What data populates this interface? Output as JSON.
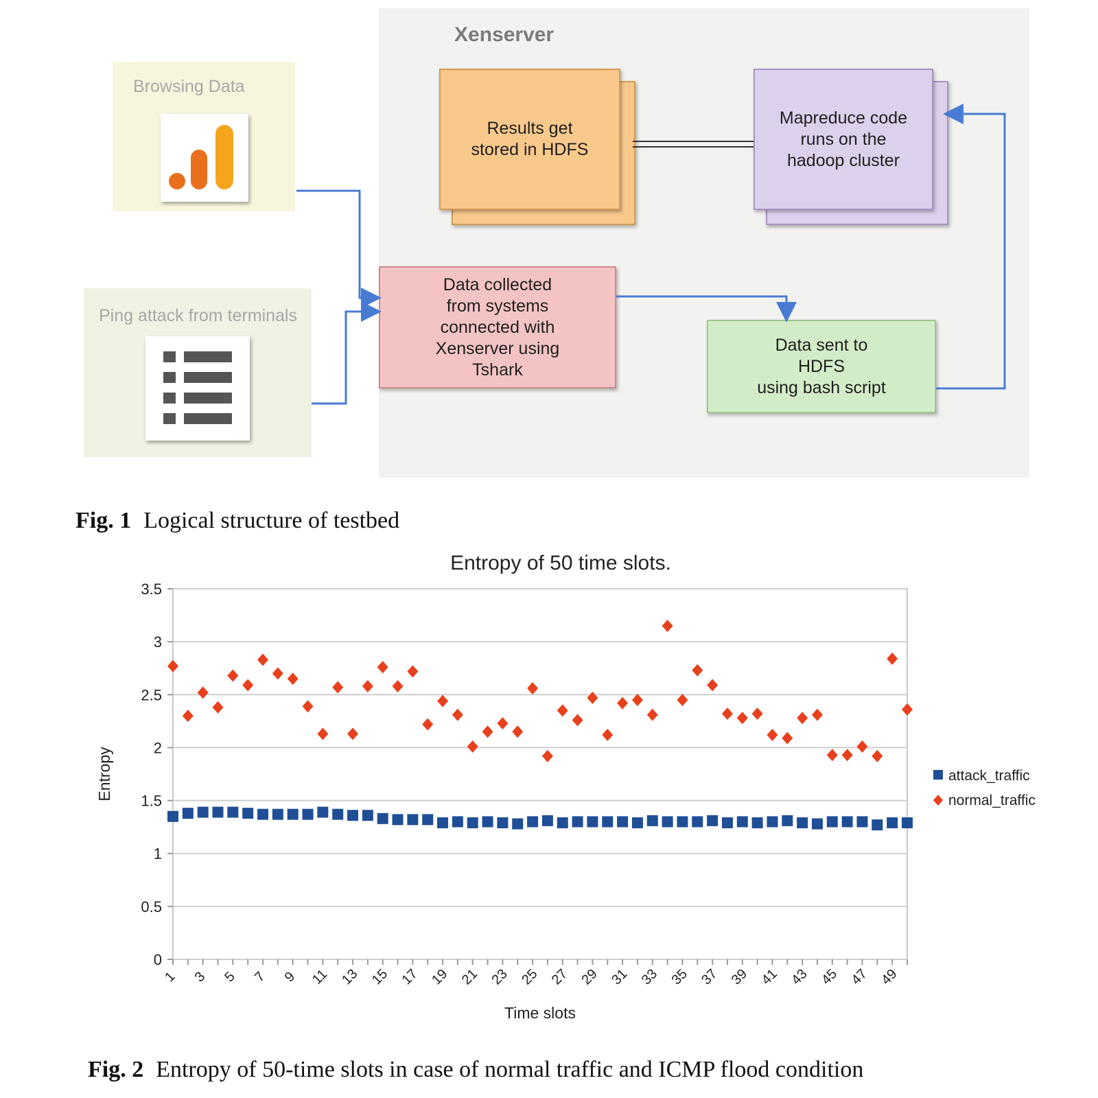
{
  "fig1": {
    "xenserver_label": "Xenserver",
    "browsing_label": "Browsing Data",
    "ping_label": "Ping attack from terminals",
    "boxes": {
      "results": "Results get\nstored in HDFS",
      "mapreduce": "Mapreduce code\nruns on the\nhadoop cluster",
      "collected": "Data collected\nfrom systems\nconnected with\nXenserver using\nTshark",
      "sent": "Data sent to\nHDFS\nusing bash script"
    },
    "colors": {
      "results": "#f9c98c",
      "mapreduce": "#ddd0ec",
      "collected": "#f4c4c4",
      "sent": "#d3ecc8",
      "arrow": "#4a7bd4"
    },
    "caption_label": "Fig. 1",
    "caption_text": "Logical structure of testbed"
  },
  "fig2": {
    "caption_label": "Fig. 2",
    "caption_text": "Entropy of 50-time slots in case of normal traffic and ICMP flood condition"
  },
  "chart_data": {
    "type": "scatter",
    "title": "Entropy of 50 time slots.",
    "xlabel": "Time slots",
    "ylabel": "Entropy",
    "ylim": [
      0,
      3.5
    ],
    "yticks": [
      "0",
      "0.5",
      "1",
      "1.5",
      "2",
      "2.5",
      "3",
      "3.5"
    ],
    "xticks": [
      "1",
      "3",
      "5",
      "7",
      "9",
      "11",
      "13",
      "15",
      "17",
      "19",
      "21",
      "23",
      "25",
      "27",
      "29",
      "31",
      "33",
      "35",
      "37",
      "39",
      "41",
      "43",
      "45",
      "47",
      "49"
    ],
    "x": [
      1,
      2,
      3,
      4,
      5,
      6,
      7,
      8,
      9,
      10,
      11,
      12,
      13,
      14,
      15,
      16,
      17,
      18,
      19,
      20,
      21,
      22,
      23,
      24,
      25,
      26,
      27,
      28,
      29,
      30,
      31,
      32,
      33,
      34,
      35,
      36,
      37,
      38,
      39,
      40,
      41,
      42,
      43,
      44,
      45,
      46,
      47,
      48,
      49,
      50
    ],
    "grid": true,
    "legend_position": "right",
    "series": [
      {
        "name": "attack_traffic",
        "marker": "square",
        "color": "#1f4e96",
        "values": [
          1.35,
          1.38,
          1.39,
          1.39,
          1.39,
          1.38,
          1.37,
          1.37,
          1.37,
          1.37,
          1.39,
          1.37,
          1.36,
          1.36,
          1.33,
          1.32,
          1.32,
          1.32,
          1.29,
          1.3,
          1.29,
          1.3,
          1.29,
          1.28,
          1.3,
          1.31,
          1.29,
          1.3,
          1.3,
          1.3,
          1.3,
          1.29,
          1.31,
          1.3,
          1.3,
          1.3,
          1.31,
          1.29,
          1.3,
          1.29,
          1.3,
          1.31,
          1.29,
          1.28,
          1.3,
          1.3,
          1.3,
          1.27,
          1.29,
          1.29
        ]
      },
      {
        "name": "normal_traffic",
        "marker": "diamond",
        "color": "#e8401c",
        "values": [
          2.77,
          2.3,
          2.52,
          2.38,
          2.68,
          2.59,
          2.83,
          2.7,
          2.65,
          2.39,
          2.13,
          2.57,
          2.13,
          2.58,
          2.76,
          2.58,
          2.72,
          2.22,
          2.44,
          2.31,
          2.01,
          2.15,
          2.23,
          2.15,
          2.56,
          1.92,
          2.35,
          2.26,
          2.47,
          2.12,
          2.42,
          2.45,
          2.31,
          3.15,
          2.45,
          2.73,
          2.59,
          2.32,
          2.28,
          2.32,
          2.12,
          2.09,
          2.28,
          2.31,
          1.93,
          1.93,
          2.01,
          1.92,
          2.84,
          2.36
        ]
      }
    ]
  }
}
